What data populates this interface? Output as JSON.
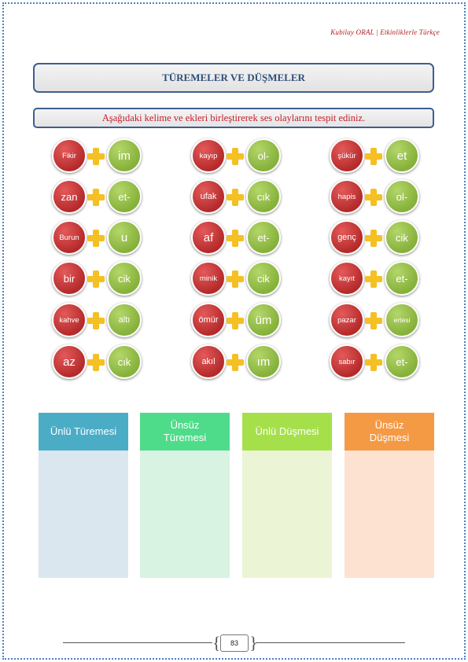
{
  "header": {
    "author": "Kubilay ORAL | Etkinliklerle Türkçe"
  },
  "title": "TÜREMELER VE DÜŞMELER",
  "instruction": "Aşağıdaki kelime ve ekleri birleştirerek ses olaylarını tespit ediniz.",
  "pairs": [
    {
      "word": "Fikir",
      "suffix": "im"
    },
    {
      "word": "zan",
      "suffix": "et-"
    },
    {
      "word": "Burun",
      "suffix": "u"
    },
    {
      "word": "bir",
      "suffix": "cik"
    },
    {
      "word": "kahve",
      "suffix": "altı"
    },
    {
      "word": "az",
      "suffix": "cık"
    },
    {
      "word": "kayıp",
      "suffix": "ol-"
    },
    {
      "word": "ufak",
      "suffix": "cık"
    },
    {
      "word": "af",
      "suffix": "et-"
    },
    {
      "word": "minik",
      "suffix": "cik"
    },
    {
      "word": "ömür",
      "suffix": "üm"
    },
    {
      "word": "akıl",
      "suffix": "ım"
    },
    {
      "word": "şükür",
      "suffix": "et"
    },
    {
      "word": "hapis",
      "suffix": "ol-"
    },
    {
      "word": "genç",
      "suffix": "cik"
    },
    {
      "word": "kayıt",
      "suffix": "et-"
    },
    {
      "word": "pazar",
      "suffix": "ertesi"
    },
    {
      "word": "sabır",
      "suffix": "et-"
    }
  ],
  "categories": [
    {
      "label": "Ünlü Türemesi",
      "header_color": "#4bacc6",
      "body_color": "#dae7ee"
    },
    {
      "label": "Ünsüz Türemesi",
      "header_color": "#4fdc8a",
      "body_color": "#d9f3e2"
    },
    {
      "label": "Ünlü Düşmesi",
      "header_color": "#a5e04b",
      "body_color": "#ebf5d5"
    },
    {
      "label": "Ünsüz Düşmesi",
      "header_color": "#f49a44",
      "body_color": "#fde2d2"
    }
  ],
  "footer": {
    "page_number": "83"
  }
}
